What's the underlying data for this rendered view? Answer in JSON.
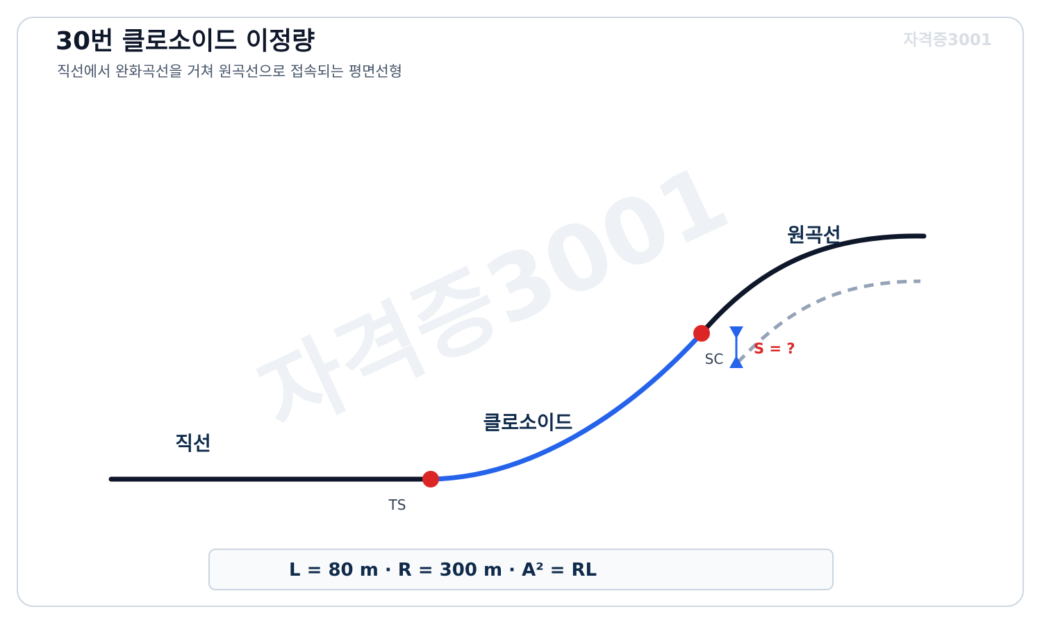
{
  "header": {
    "title": "30번 클로소이드 이정량",
    "subtitle": "직선에서 완화곡선을 거쳐 원곡선으로 접속되는 평면선형",
    "brand": "자격증3001"
  },
  "watermark": "자격증3001",
  "diagram": {
    "labels": {
      "straight": "직선",
      "clothoid": "클로소이드",
      "circular": "원곡선",
      "ts": "TS",
      "sc": "SC",
      "shift": "S = ?"
    }
  },
  "formula": "L = 80 m · R = 300 m · A² = RL",
  "colors": {
    "straight_line": "#0f172a",
    "clothoid_curve": "#2563eb",
    "circular_curve": "#0f172a",
    "shifted_curve": "#94a3b8",
    "points": "#dc2626",
    "shift_label": "#dc2626",
    "shift_marker": "#2563eb"
  }
}
